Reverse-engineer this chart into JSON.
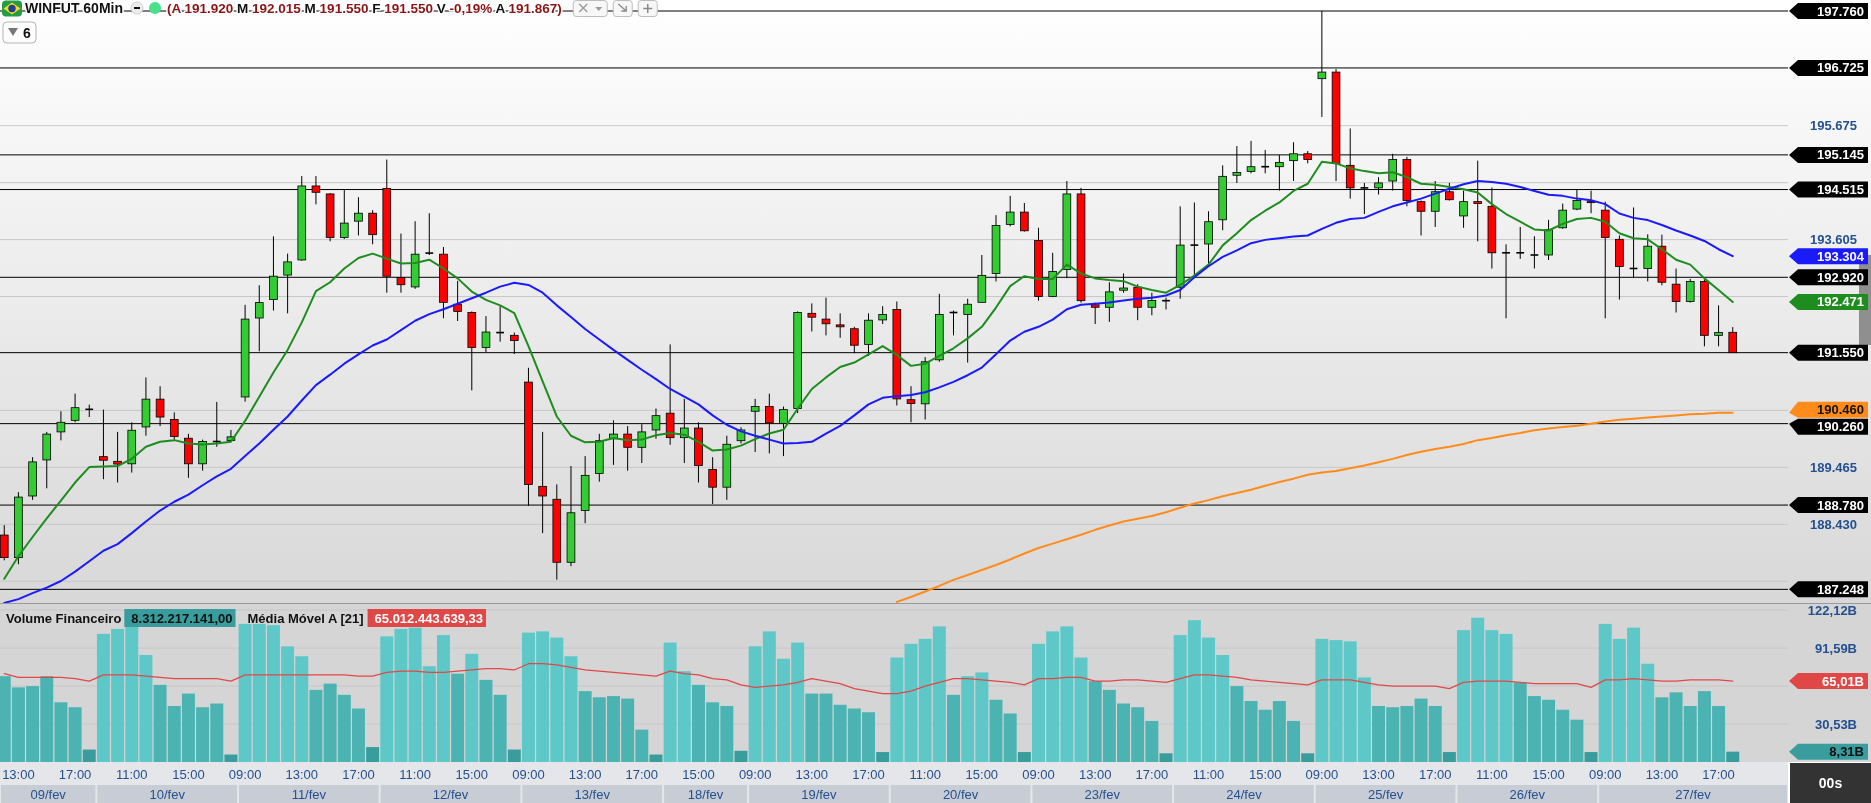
{
  "chart_data": [
    {
      "type": "candlestick",
      "title": "WINFUT 60Min",
      "subtitle": "(A 191.920 M 192.015 M 191.550 F 191.550 V -0,19% A 191.867)",
      "categories": [
        null,
        null,
        null,
        null,
        null,
        null,
        null,
        null,
        null,
        null,
        null,
        null,
        null,
        null,
        null,
        null,
        null,
        null,
        null,
        null,
        null,
        null,
        null,
        null,
        null,
        null,
        null,
        null,
        null,
        null,
        null,
        null,
        null,
        null,
        null,
        null,
        null,
        null,
        null,
        null,
        null,
        null,
        null,
        null,
        null,
        null,
        null,
        null,
        null,
        null,
        null,
        null,
        null,
        null,
        null,
        null,
        null,
        null,
        null,
        null,
        null,
        null,
        null,
        null,
        null,
        null,
        null,
        null,
        null,
        null,
        null,
        null,
        null,
        null,
        null,
        null,
        null,
        null,
        null,
        null,
        null,
        null,
        null,
        null,
        null,
        null,
        null,
        null,
        null,
        null,
        null,
        null,
        null,
        null,
        null,
        null,
        null,
        null,
        null,
        null,
        null,
        null,
        null,
        null,
        null,
        null,
        null,
        null,
        null,
        null,
        null,
        null,
        null,
        null,
        null,
        null,
        null,
        null,
        null,
        null,
        null,
        null,
        null
      ],
      "ylim": [
        187000,
        197960
      ],
      "yticks": [
        {
          "value": 187395,
          "label": null
        },
        {
          "value": 188430,
          "label": "188.430"
        },
        {
          "value": 189465,
          "label": "189.465"
        },
        {
          "value": 190500,
          "label": null
        },
        {
          "value": 192570,
          "label": null
        },
        {
          "value": 193605,
          "label": "193.605"
        },
        {
          "value": 194640,
          "label": null
        },
        {
          "value": 195675,
          "label": "195.675"
        }
      ],
      "grid": "y",
      "tick_labels": "y",
      "series": [
        {
          "ohlc": [
            [
              188235,
              188415,
              187775,
              187825
            ],
            [
              187825,
              189015,
              187705,
              188925
            ],
            [
              188945,
              189650,
              188875,
              189565
            ],
            [
              189600,
              190110,
              189085,
              190070
            ],
            [
              190110,
              190485,
              189955,
              190285
            ],
            [
              190320,
              190805,
              190285,
              190550
            ],
            [
              190520,
              190605,
              190380,
              190520
            ],
            [
              189660,
              190515,
              189250,
              189595
            ],
            [
              189575,
              190110,
              189190,
              189525
            ],
            [
              189530,
              190285,
              189370,
              190140
            ],
            [
              190200,
              191100,
              190040,
              190705
            ],
            [
              190705,
              190940,
              190215,
              190380
            ],
            [
              190335,
              190465,
              189970,
              190025
            ],
            [
              189995,
              190075,
              189275,
              189530
            ],
            [
              189530,
              189970,
              189405,
              189935
            ],
            [
              189935,
              190655,
              189840,
              189935
            ],
            [
              189955,
              190145,
              189935,
              190020
            ],
            [
              190745,
              192420,
              190660,
              192160
            ],
            [
              192180,
              192775,
              191575,
              192460
            ],
            [
              192515,
              193665,
              192315,
              192940
            ],
            [
              192960,
              193350,
              192265,
              193200
            ],
            [
              193235,
              194760,
              193220,
              194580
            ],
            [
              194580,
              194760,
              194245,
              194465
            ],
            [
              194435,
              194450,
              193575,
              193645
            ],
            [
              193645,
              194515,
              193615,
              193905
            ],
            [
              193940,
              194375,
              193680,
              194085
            ],
            [
              194085,
              194140,
              193520,
              193695
            ],
            [
              194535,
              195060,
              192640,
              192940
            ],
            [
              192915,
              193715,
              192640,
              192785
            ],
            [
              192745,
              193940,
              192710,
              193340
            ],
            [
              193360,
              194085,
              193325,
              193360
            ],
            [
              193340,
              193470,
              192175,
              192465
            ],
            [
              192430,
              192855,
              192125,
              192300
            ],
            [
              192280,
              192300,
              190865,
              191645
            ],
            [
              191645,
              192215,
              191560,
              191925
            ],
            [
              191915,
              192395,
              191750,
              191915
            ],
            [
              191865,
              191915,
              191525,
              191770
            ],
            [
              191015,
              191275,
              188765,
              189155
            ],
            [
              189120,
              190110,
              188270,
              188945
            ],
            [
              188885,
              189155,
              187425,
              187740
            ],
            [
              187740,
              189490,
              187670,
              188640
            ],
            [
              188680,
              189670,
              188450,
              189320
            ],
            [
              189355,
              190075,
              189205,
              189950
            ],
            [
              189985,
              190320,
              189510,
              190070
            ],
            [
              190070,
              190215,
              189405,
              189830
            ],
            [
              189830,
              190250,
              189545,
              190110
            ],
            [
              190145,
              190535,
              189985,
              190405
            ],
            [
              190450,
              191700,
              189875,
              190005
            ],
            [
              190005,
              190710,
              189545,
              190180
            ],
            [
              190180,
              190285,
              189190,
              189500
            ],
            [
              189425,
              189650,
              188800,
              189105
            ],
            [
              189105,
              190040,
              188875,
              189885
            ],
            [
              189950,
              190195,
              189900,
              190145
            ],
            [
              190485,
              190710,
              189745,
              190570
            ],
            [
              190570,
              190805,
              189720,
              190275
            ],
            [
              190265,
              190570,
              189670,
              190515
            ],
            [
              190535,
              192300,
              190450,
              192280
            ],
            [
              192265,
              192445,
              191935,
              192195
            ],
            [
              192160,
              192550,
              191865,
              192075
            ],
            [
              192055,
              192265,
              191820,
              192020
            ],
            [
              191985,
              192020,
              191540,
              191685
            ],
            [
              191700,
              192265,
              191490,
              192140
            ],
            [
              192145,
              192395,
              192070,
              192245
            ],
            [
              192335,
              192480,
              190590,
              190710
            ],
            [
              190695,
              190940,
              190285,
              190625
            ],
            [
              190620,
              191470,
              190335,
              191385
            ],
            [
              191420,
              192620,
              191385,
              192245
            ],
            [
              192280,
              192315,
              191865,
              192280
            ],
            [
              192245,
              192530,
              191370,
              192430
            ],
            [
              192465,
              193325,
              192465,
              192955
            ],
            [
              192990,
              194050,
              192845,
              193860
            ],
            [
              193880,
              194400,
              193845,
              194105
            ],
            [
              194105,
              194270,
              193750,
              193765
            ],
            [
              193590,
              193820,
              192495,
              192570
            ],
            [
              192570,
              193365,
              192560,
              193025
            ],
            [
              193060,
              194670,
              192905,
              194435
            ],
            [
              194435,
              194545,
              192460,
              192495
            ],
            [
              192420,
              192460,
              192070,
              192375
            ],
            [
              192375,
              192830,
              192110,
              192655
            ],
            [
              192685,
              192990,
              192640,
              192725
            ],
            [
              192740,
              192795,
              192140,
              192375
            ],
            [
              192375,
              192640,
              192230,
              192500
            ],
            [
              192495,
              192550,
              192335,
              192495
            ],
            [
              192740,
              194210,
              192530,
              193505
            ],
            [
              193505,
              194280,
              192940,
              193505
            ],
            [
              193525,
              194120,
              193170,
              193930
            ],
            [
              193965,
              194955,
              193775,
              194755
            ],
            [
              194775,
              195305,
              194635,
              194825
            ],
            [
              194845,
              195400,
              194810,
              194930
            ],
            [
              194930,
              195235,
              194810,
              194930
            ],
            [
              194930,
              195145,
              194495,
              195005
            ],
            [
              195040,
              195375,
              194670,
              195165
            ],
            [
              195165,
              195215,
              194990,
              195060
            ],
            [
              196530,
              197760,
              195835,
              196650
            ],
            [
              196650,
              196705,
              194670,
              194990
            ],
            [
              194955,
              195625,
              194350,
              194545
            ],
            [
              194545,
              194635,
              194070,
              194545
            ],
            [
              194545,
              194740,
              194425,
              194635
            ],
            [
              194670,
              195165,
              194495,
              195060
            ],
            [
              195060,
              195110,
              194210,
              194315
            ],
            [
              194295,
              194315,
              193680,
              194120
            ],
            [
              194120,
              194670,
              193835,
              194475
            ],
            [
              194475,
              194635,
              194315,
              194330
            ],
            [
              194035,
              194495,
              193820,
              194295
            ],
            [
              194295,
              195040,
              193575,
              194260
            ],
            [
              194210,
              194550,
              193080,
              193365
            ],
            [
              193365,
              193520,
              192175,
              193365
            ],
            [
              193365,
              193835,
              193255,
              193365
            ],
            [
              193325,
              193665,
              193080,
              193325
            ],
            [
              193325,
              193965,
              193235,
              193785
            ],
            [
              193820,
              194260,
              193800,
              194140
            ],
            [
              194160,
              194510,
              194140,
              194315
            ],
            [
              194295,
              194495,
              194085,
              194280
            ],
            [
              194140,
              194295,
              192175,
              193645
            ],
            [
              193610,
              193680,
              192515,
              193115
            ],
            [
              193080,
              194190,
              192905,
              193080
            ],
            [
              193080,
              193700,
              192845,
              193485
            ],
            [
              193485,
              193695,
              192775,
              192830
            ],
            [
              192795,
              193080,
              192280,
              192480
            ],
            [
              192480,
              192890,
              192460,
              192845
            ],
            [
              192845,
              192880,
              191665,
              191865
            ],
            [
              191865,
              192410,
              191665,
              191915
            ],
            [
              191920,
              192015,
              191550,
              191550
            ]
          ],
          "colors": [
            "#ff0000",
            "#33cc33",
            "#33cc33",
            "#33cc33",
            "#33cc33",
            "#33cc33",
            "#000000",
            "#ff0000",
            "#ff0000",
            "#33cc33",
            "#33cc33",
            "#ff0000",
            "#ff0000",
            "#ff0000",
            "#33cc33",
            "#000000",
            "#33cc33",
            "#33cc33",
            "#33cc33",
            "#33cc33",
            "#33cc33",
            "#33cc33",
            "#ff0000",
            "#ff0000",
            "#33cc33",
            "#33cc33",
            "#ff0000",
            "#ff0000",
            "#ff0000",
            "#33cc33",
            "#000000",
            "#ff0000",
            "#ff0000",
            "#ff0000",
            "#33cc33",
            "#000000",
            "#ff0000",
            "#ff0000",
            "#ff0000",
            "#ff0000",
            "#33cc33",
            "#33cc33",
            "#33cc33",
            "#33cc33",
            "#ff0000",
            "#33cc33",
            "#33cc33",
            "#ff0000",
            "#33cc33",
            "#ff0000",
            "#ff0000",
            "#33cc33",
            "#33cc33",
            "#33cc33",
            "#ff0000",
            "#33cc33",
            "#33cc33",
            "#ff0000",
            "#ff0000",
            "#ff0000",
            "#ff0000",
            "#33cc33",
            "#33cc33",
            "#ff0000",
            "#ff0000",
            "#33cc33",
            "#33cc33",
            "#000000",
            "#33cc33",
            "#33cc33",
            "#33cc33",
            "#33cc33",
            "#ff0000",
            "#ff0000",
            "#33cc33",
            "#33cc33",
            "#ff0000",
            "#ff0000",
            "#33cc33",
            "#33cc33",
            "#ff0000",
            "#33cc33",
            "#000000",
            "#33cc33",
            "#000000",
            "#33cc33",
            "#33cc33",
            "#33cc33",
            "#33cc33",
            "#000000",
            "#33cc33",
            "#33cc33",
            "#ff0000",
            "#33cc33",
            "#ff0000",
            "#ff0000",
            "#000000",
            "#33cc33",
            "#33cc33",
            "#ff0000",
            "#ff0000",
            "#33cc33",
            "#ff0000",
            "#33cc33",
            "#ff0000",
            "#ff0000",
            "#000000",
            "#000000",
            "#000000",
            "#33cc33",
            "#33cc33",
            "#33cc33",
            "#ff0000",
            "#ff0000",
            "#ff0000",
            "#000000",
            "#33cc33",
            "#ff0000",
            "#ff0000",
            "#33cc33",
            "#ff0000",
            "#33cc33",
            "#ff0000"
          ]
        },
        {
          "type": "line",
          "color": "#1e8c1e",
          "values": [
            187440,
            187850,
            188200,
            188540,
            188860,
            189190,
            189470,
            189480,
            189490,
            189620,
            189840,
            189930,
            189960,
            189900,
            189880,
            189900,
            189930,
            190310,
            190750,
            191190,
            191600,
            192100,
            192670,
            192830,
            193080,
            193270,
            193350,
            193260,
            193170,
            193180,
            193240,
            193080,
            192900,
            192660,
            192510,
            192410,
            192270,
            191670,
            191030,
            190390,
            190040,
            189920,
            189930,
            190000,
            189960,
            189970,
            190050,
            190090,
            190060,
            189930,
            189770,
            189790,
            189860,
            189980,
            190080,
            190150,
            190530,
            190890,
            191100,
            191290,
            191370,
            191520,
            191670,
            191510,
            191310,
            191350,
            191490,
            191630,
            191810,
            192020,
            192370,
            192760,
            192940,
            192890,
            192890,
            193150,
            192990,
            192900,
            192870,
            192850,
            192750,
            192690,
            192640,
            192780,
            192950,
            193150,
            193500,
            193720,
            193960,
            194130,
            194280,
            194490,
            194620,
            195020,
            194990,
            194900,
            194850,
            194810,
            194830,
            194740,
            194620,
            194600,
            194560,
            194520,
            194460,
            194250,
            194070,
            193930,
            193790,
            193770,
            193890,
            193980,
            194000,
            193930,
            193720,
            193630,
            193610,
            193430,
            193240,
            193150,
            192900,
            192690,
            192471
          ]
        },
        {
          "type": "line",
          "color": "#1a1aff",
          "values": [
            187000,
            187070,
            187180,
            187280,
            187400,
            187570,
            187760,
            187950,
            188070,
            188270,
            188480,
            188680,
            188840,
            188970,
            189140,
            189300,
            189440,
            189670,
            189900,
            190150,
            190390,
            190680,
            190960,
            191150,
            191350,
            191520,
            191680,
            191790,
            191960,
            192130,
            192250,
            192340,
            192440,
            192540,
            192640,
            192750,
            192820,
            192780,
            192640,
            192410,
            192200,
            191980,
            191790,
            191600,
            191420,
            191240,
            191070,
            190890,
            190750,
            190610,
            190410,
            190240,
            190120,
            190040,
            189970,
            189900,
            189910,
            189930,
            190080,
            190220,
            190410,
            190610,
            190730,
            190760,
            190780,
            190830,
            190920,
            191020,
            191140,
            191280,
            191520,
            191770,
            191930,
            192020,
            192150,
            192340,
            192420,
            192440,
            192460,
            192500,
            192530,
            192550,
            192590,
            192690,
            192920,
            193120,
            193290,
            193410,
            193540,
            193600,
            193630,
            193660,
            193680,
            193800,
            193910,
            193980,
            194000,
            194110,
            194210,
            194280,
            194350,
            194440,
            194530,
            194610,
            194670,
            194650,
            194620,
            194560,
            194490,
            194420,
            194400,
            194350,
            194320,
            194250,
            194080,
            194000,
            193960,
            193870,
            193770,
            193680,
            193580,
            193430,
            193304
          ]
        },
        {
          "type": "line",
          "color": "#ff8c1a",
          "values": [
            null,
            null,
            null,
            null,
            null,
            null,
            null,
            null,
            null,
            null,
            null,
            null,
            null,
            null,
            null,
            null,
            null,
            null,
            null,
            null,
            null,
            null,
            null,
            null,
            null,
            null,
            null,
            null,
            null,
            null,
            null,
            null,
            null,
            null,
            null,
            null,
            null,
            null,
            null,
            null,
            null,
            null,
            null,
            null,
            null,
            null,
            null,
            null,
            null,
            null,
            null,
            null,
            null,
            null,
            null,
            null,
            null,
            null,
            null,
            null,
            null,
            null,
            null,
            187020,
            187110,
            187210,
            187310,
            187420,
            187510,
            187600,
            187690,
            187790,
            187900,
            188000,
            188080,
            188160,
            188240,
            188330,
            188410,
            188480,
            188530,
            188580,
            188650,
            188730,
            188810,
            188870,
            188940,
            189000,
            189060,
            189130,
            189200,
            189260,
            189330,
            189370,
            189400,
            189450,
            189500,
            189560,
            189620,
            189690,
            189750,
            189800,
            189840,
            189890,
            189960,
            190000,
            190050,
            190090,
            190140,
            190170,
            190200,
            190220,
            190260,
            190300,
            190330,
            190350,
            190370,
            190390,
            190410,
            190430,
            190440,
            190460,
            190460
          ]
        }
      ],
      "ref_lines": [
        {
          "axis": "y",
          "value": 197760,
          "label": "197.760",
          "color": "#000000"
        },
        {
          "axis": "y",
          "value": 196725,
          "label": "196.725",
          "color": "#000000"
        },
        {
          "axis": "y",
          "value": 195145,
          "label": "195.145",
          "color": "#000000"
        },
        {
          "axis": "y",
          "value": 194515,
          "label": "194.515",
          "color": "#000000"
        },
        {
          "axis": "y",
          "value": 192920,
          "label": "192.920",
          "color": "#000000"
        },
        {
          "axis": "y",
          "value": 191550,
          "label": "191.550",
          "color": "#000000"
        },
        {
          "axis": "y",
          "value": 190260,
          "label": "190.260",
          "color": "#000000"
        },
        {
          "axis": "y",
          "value": 188780,
          "label": "188.780",
          "color": "#000000"
        },
        {
          "axis": "y",
          "value": 187248,
          "label": "187.248",
          "color": "#000000"
        }
      ],
      "annotations": [
        "6",
        "192.471",
        "193.304",
        "190.460"
      ]
    },
    {
      "type": "bar",
      "categories": [
        null,
        "13:00",
        null,
        null,
        null,
        "17:00",
        null,
        null,
        null,
        "11:00",
        null,
        null,
        null,
        "15:00",
        null,
        null,
        null,
        "09:00",
        null,
        null,
        null,
        "13:00",
        null,
        null,
        null,
        "17:00",
        null,
        null,
        null,
        "11:00",
        null,
        null,
        null,
        "15:00",
        null,
        null,
        null,
        "09:00",
        null,
        null,
        null,
        "13:00",
        null,
        null,
        null,
        "17:00",
        null,
        null,
        null,
        "15:00",
        null,
        null,
        null,
        "09:00",
        null,
        null,
        null,
        "13:00",
        null,
        null,
        null,
        "17:00",
        null,
        null,
        null,
        "11:00",
        null,
        null,
        null,
        "15:00",
        null,
        null,
        null,
        "09:00",
        null,
        null,
        null,
        "13:00",
        null,
        null,
        null,
        "17:00",
        null,
        null,
        null,
        "11:00",
        null,
        null,
        null,
        "15:00",
        null,
        null,
        null,
        "09:00",
        null,
        null,
        null,
        "13:00",
        null,
        null,
        null,
        "17:00",
        null,
        null,
        null,
        "11:00",
        null,
        null,
        null,
        "15:00",
        null,
        null,
        null,
        "09:00",
        null,
        null,
        null,
        "13:00",
        null,
        null,
        null,
        "17:00",
        null
      ],
      "ylim": [
        0,
        127
      ],
      "yticks": [
        {
          "value": 30.53,
          "label": "30,53B"
        },
        {
          "value": 61.06,
          "label": null
        },
        {
          "value": 91.59,
          "label": "91,59B"
        },
        {
          "value": 122.12,
          "label": "122,12B"
        }
      ],
      "grid": "y",
      "legend": "top left",
      "series": [
        {
          "name": "Volume Financeiro",
          "colors": [
            "#4cb3b3",
            "#4cb3b3",
            "#4cb3b3",
            "#4cb3b3",
            "#4cb3b3",
            "#4cb3b3",
            "#3a9d9d",
            "#5ec8c8",
            "#5ec8c8",
            "#5ec8c8",
            "#5ec8c8",
            "#4cb3b3",
            "#4cb3b3",
            "#4cb3b3",
            "#4cb3b3",
            "#4cb3b3",
            "#3a9d9d",
            "#5ec8c8",
            "#5ec8c8",
            "#5ec8c8",
            "#5ec8c8",
            "#5ec8c8",
            "#4cb3b3",
            "#4cb3b3",
            "#4cb3b3",
            "#4cb3b3",
            "#3a9d9d",
            "#5ec8c8",
            "#5ec8c8",
            "#5ec8c8",
            "#5ec8c8",
            "#5ec8c8",
            "#4cb3b3",
            "#5ec8c8",
            "#4cb3b3",
            "#4cb3b3",
            "#3a9d9d",
            "#5ec8c8",
            "#5ec8c8",
            "#5ec8c8",
            "#5ec8c8",
            "#4cb3b3",
            "#4cb3b3",
            "#4cb3b3",
            "#4cb3b3",
            "#4cb3b3",
            "#3a9d9d",
            "#5ec8c8",
            "#5ec8c8",
            "#4cb3b3",
            "#4cb3b3",
            "#4cb3b3",
            "#3a9d9d",
            "#5ec8c8",
            "#5ec8c8",
            "#5ec8c8",
            "#5ec8c8",
            "#4cb3b3",
            "#4cb3b3",
            "#4cb3b3",
            "#4cb3b3",
            "#4cb3b3",
            "#3a9d9d",
            "#5ec8c8",
            "#5ec8c8",
            "#5ec8c8",
            "#5ec8c8",
            "#4cb3b3",
            "#5ec8c8",
            "#5ec8c8",
            "#4cb3b3",
            "#4cb3b3",
            "#3a9d9d",
            "#5ec8c8",
            "#5ec8c8",
            "#5ec8c8",
            "#5ec8c8",
            "#4cb3b3",
            "#4cb3b3",
            "#4cb3b3",
            "#4cb3b3",
            "#4cb3b3",
            "#3a9d9d",
            "#5ec8c8",
            "#5ec8c8",
            "#5ec8c8",
            "#5ec8c8",
            "#4cb3b3",
            "#4cb3b3",
            "#4cb3b3",
            "#4cb3b3",
            "#4cb3b3",
            "#3a9d9d",
            "#5ec8c8",
            "#5ec8c8",
            "#5ec8c8",
            "#5ec8c8",
            "#4cb3b3",
            "#4cb3b3",
            "#4cb3b3",
            "#4cb3b3",
            "#4cb3b3",
            "#3a9d9d",
            "#5ec8c8",
            "#5ec8c8",
            "#5ec8c8",
            "#5ec8c8",
            "#4cb3b3",
            "#4cb3b3",
            "#4cb3b3",
            "#4cb3b3",
            "#4cb3b3",
            "#3a9d9d",
            "#5ec8c8",
            "#5ec8c8",
            "#5ec8c8",
            "#5ec8c8",
            "#4cb3b3",
            "#4cb3b3",
            "#4cb3b3",
            "#4cb3b3",
            "#4cb3b3",
            "#3a9d9d"
          ],
          "values": [
            69,
            60,
            61,
            69,
            48,
            44,
            10,
            103,
            107,
            109,
            86,
            62,
            45,
            55,
            44,
            47,
            6,
            111,
            111,
            110,
            93,
            85,
            58,
            63,
            54,
            43,
            12,
            101,
            107,
            108,
            77,
            102,
            71,
            87,
            66,
            54,
            10,
            104,
            105,
            100,
            85,
            57,
            52,
            53,
            51,
            26,
            6,
            96,
            73,
            62,
            48,
            45,
            9,
            93,
            105,
            83,
            96,
            55,
            55,
            46,
            43,
            40,
            8,
            84,
            95,
            99,
            109,
            54,
            69,
            72,
            50,
            39,
            8,
            95,
            105,
            109,
            84,
            65,
            58,
            47,
            44,
            33,
            7,
            102,
            114,
            100,
            86,
            61,
            49,
            42,
            49,
            33,
            7,
            99,
            98,
            97,
            68,
            45,
            44,
            45,
            51,
            45,
            8,
            106,
            116,
            106,
            103,
            64,
            53,
            50,
            42,
            34,
            8,
            111,
            99,
            108,
            79,
            52,
            56,
            45,
            57,
            45,
            8.31
          ]
        },
        {
          "name": "Média Móvel A [21]",
          "type": "line",
          "color": "#e04848",
          "values": [
            71,
            68,
            68,
            68,
            68,
            67,
            65,
            70,
            70,
            70,
            69,
            68,
            67,
            67,
            67,
            67,
            65,
            70,
            70,
            70,
            70,
            70,
            70,
            70,
            70,
            69,
            69,
            72,
            73,
            73,
            72,
            72,
            73,
            74,
            75,
            75,
            74,
            79,
            79,
            78,
            76,
            74,
            73,
            72,
            71,
            70,
            69,
            73,
            71,
            70,
            67,
            66,
            62,
            60,
            61,
            62,
            64,
            67,
            65,
            63,
            59,
            57,
            55,
            55,
            57,
            61,
            64,
            67,
            67,
            66,
            65,
            64,
            62,
            67,
            67,
            68,
            68,
            65,
            65,
            66,
            66,
            65,
            64,
            67,
            70,
            70,
            69,
            68,
            66,
            65,
            64,
            63,
            62,
            66,
            66,
            66,
            64,
            62,
            61,
            61,
            61,
            61,
            59,
            64,
            65,
            65,
            65,
            64,
            63,
            63,
            63,
            63,
            60,
            66,
            66,
            67,
            66,
            65,
            65,
            66,
            66,
            66,
            65.01
          ]
        }
      ],
      "annotations": [
        "8.312.217.141,00",
        "65.012.443.639,33",
        "09/fev",
        "10/fev",
        "11/fev",
        "12/fev",
        "13/fev",
        "18/fev",
        "19/fev",
        "20/fev",
        "23/fev",
        "24/fev",
        "25/fev",
        "26/fev",
        "27/fev",
        "00s",
        "8,31B",
        "65,01B"
      ]
    }
  ]
}
